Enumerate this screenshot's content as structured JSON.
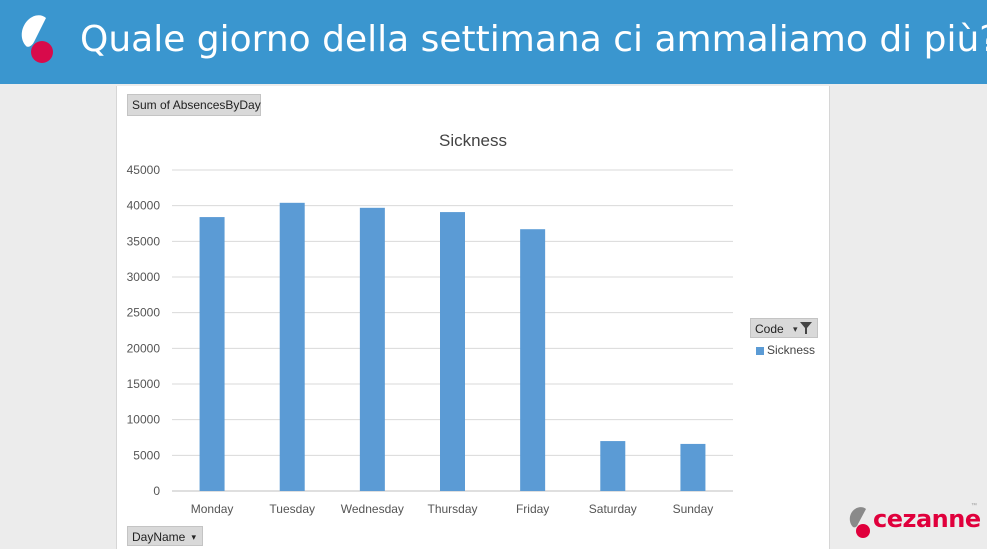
{
  "header": {
    "title": "Quale giorno della settimana ci ammaliamo di più?"
  },
  "pivot": {
    "value_field": "Sum of AbsencesByDay",
    "row_field": "DayName",
    "legend_field": "Code"
  },
  "brand": {
    "name": "cezanne",
    "tm": "™"
  },
  "colors": {
    "banner": "#3a96cf",
    "bar": "#5b9bd5",
    "brand_red": "#e0003c"
  },
  "chart_data": {
    "type": "bar",
    "title": "Sickness",
    "categories": [
      "Monday",
      "Tuesday",
      "Wednesday",
      "Thursday",
      "Friday",
      "Saturday",
      "Sunday"
    ],
    "series": [
      {
        "name": "Sickness",
        "values": [
          38400,
          40400,
          39700,
          39100,
          36700,
          7000,
          6600
        ]
      }
    ],
    "ylim": [
      0,
      45000
    ],
    "yticks": [
      0,
      5000,
      10000,
      15000,
      20000,
      25000,
      30000,
      35000,
      40000,
      45000
    ],
    "grid": true,
    "legend_position": "right"
  }
}
